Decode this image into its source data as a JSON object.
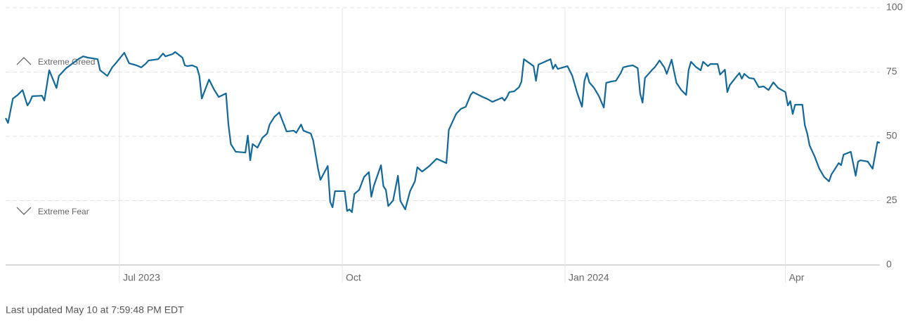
{
  "chart_data": {
    "type": "line",
    "x": [
      -47,
      -46,
      -44,
      -42,
      -40,
      -38,
      -37,
      -36,
      -32,
      -31,
      -29,
      -26,
      -25,
      -22,
      -17,
      -15,
      -13,
      -9,
      -8,
      -5,
      -3,
      -1,
      2,
      4,
      7,
      9,
      11,
      12,
      16,
      18,
      19,
      22,
      23,
      26,
      27,
      28,
      30,
      32,
      33,
      34,
      37,
      39,
      41,
      44,
      45,
      46,
      48,
      52,
      53,
      54,
      55,
      57,
      59,
      61,
      62,
      64,
      66,
      68,
      69,
      72,
      73,
      75,
      76,
      79,
      80,
      82,
      83,
      86,
      87,
      88,
      89,
      90,
      93,
      94,
      95,
      96,
      97,
      99,
      101,
      103,
      104,
      105,
      108,
      109,
      110,
      111,
      113,
      115,
      116,
      118,
      120,
      122,
      123,
      125,
      128,
      131,
      135,
      136,
      139,
      141,
      143,
      145,
      146,
      150,
      152,
      154,
      156,
      158,
      159,
      160,
      161,
      163,
      165,
      166,
      167,
      171,
      172,
      173,
      178,
      179,
      180,
      181,
      185,
      187,
      189,
      191,
      192,
      193,
      194,
      196,
      198,
      200,
      201,
      203,
      205,
      207,
      208,
      210,
      212,
      214,
      215,
      216,
      217,
      220,
      221,
      222,
      223,
      225,
      226,
      228,
      230,
      232,
      234,
      235,
      236,
      238,
      240,
      241,
      243,
      244,
      247,
      248,
      250,
      251,
      252,
      255,
      256,
      257,
      258,
      260,
      262,
      264,
      266,
      268,
      270,
      272,
      275,
      276,
      277,
      278,
      279,
      282,
      283,
      284,
      285,
      287,
      289,
      291,
      293,
      294,
      297,
      298,
      299,
      302,
      304,
      305,
      306,
      309,
      311,
      313,
      314
    ],
    "values": [
      57.1,
      55.2,
      64.7,
      66.1,
      68.0,
      62.0,
      63.4,
      65.6,
      65.8,
      63.9,
      75.7,
      68.8,
      73.5,
      76.5,
      80.0,
      81.1,
      80.6,
      80.0,
      75.7,
      73.5,
      76.8,
      79.0,
      82.5,
      78.4,
      77.6,
      76.8,
      78.4,
      79.5,
      80.0,
      82.2,
      81.1,
      82.0,
      82.8,
      80.6,
      77.6,
      77.3,
      77.6,
      76.8,
      73.5,
      64.7,
      72.1,
      68.3,
      65.3,
      66.7,
      54.6,
      47.0,
      44.0,
      43.7,
      50.3,
      40.7,
      47.0,
      45.6,
      49.4,
      51.1,
      54.6,
      57.6,
      59.3,
      54.4,
      51.9,
      52.2,
      51.4,
      54.6,
      52.2,
      51.1,
      48.4,
      37.4,
      33.1,
      38.5,
      24.6,
      22.4,
      28.7,
      28.7,
      28.7,
      21.0,
      21.6,
      20.5,
      27.6,
      29.2,
      34.2,
      36.1,
      26.5,
      30.6,
      38.8,
      30.6,
      29.2,
      22.9,
      25.1,
      34.7,
      24.9,
      21.6,
      28.7,
      32.5,
      38.0,
      36.3,
      38.5,
      41.3,
      39.6,
      52.5,
      58.7,
      60.7,
      61.5,
      66.1,
      67.2,
      65.3,
      64.5,
      63.4,
      64.2,
      65.0,
      63.9,
      65.3,
      67.2,
      67.5,
      69.1,
      71.3,
      80.0,
      77.3,
      71.6,
      77.9,
      80.0,
      76.2,
      77.9,
      76.2,
      77.3,
      73.5,
      66.9,
      61.5,
      71.6,
      74.6,
      71.0,
      68.8,
      65.6,
      61.2,
      70.8,
      71.3,
      71.6,
      74.6,
      76.8,
      77.3,
      77.6,
      76.5,
      66.7,
      63.1,
      72.7,
      75.9,
      76.8,
      78.1,
      79.5,
      76.8,
      74.3,
      79.8,
      70.8,
      68.0,
      66.1,
      75.7,
      79.0,
      77.0,
      75.7,
      79.0,
      77.3,
      78.1,
      78.1,
      74.0,
      75.9,
      67.2,
      69.9,
      73.5,
      74.6,
      72.4,
      74.3,
      72.7,
      72.4,
      69.1,
      69.4,
      68.0,
      71.0,
      68.8,
      67.2,
      62.0,
      63.7,
      58.7,
      62.3,
      62.3,
      54.4,
      51.1,
      46.4,
      42.3,
      37.4,
      34.2,
      32.5,
      35.2,
      39.6,
      38.8,
      42.9,
      44.0,
      34.7,
      40.2,
      40.7,
      40.2,
      37.4,
      47.8,
      47.5
    ],
    "color": "#11689a",
    "xlim": [
      -47,
      314
    ],
    "xticks": [
      {
        "value": 0,
        "label": "Jul 2023"
      },
      {
        "value": 92,
        "label": "Oct"
      },
      {
        "value": 184,
        "label": "Jan 2024"
      },
      {
        "value": 275,
        "label": "Apr"
      }
    ],
    "ylim": [
      0,
      100
    ],
    "yticks": [
      0,
      25,
      50,
      75,
      100
    ],
    "grid": true,
    "annotations": [
      "Extreme Greed",
      "Extreme Fear"
    ],
    "footer": "Last updated May 10 at 7:59:48 PM EDT"
  }
}
